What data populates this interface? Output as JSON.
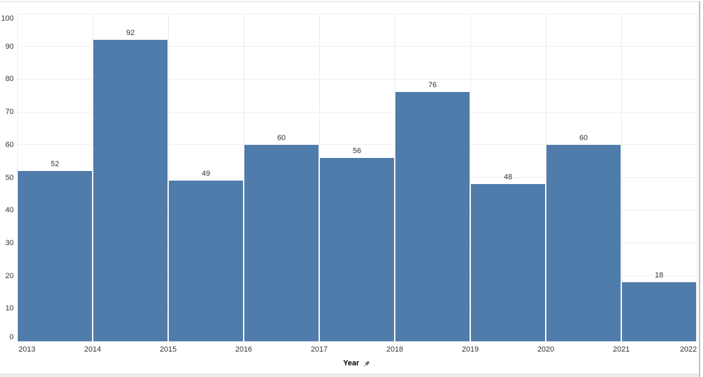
{
  "chart_data": {
    "type": "bar",
    "subtype": "histogram",
    "title": "",
    "xlabel": "Year",
    "ylabel": "",
    "bin_edge_labels": [
      "2013",
      "2014",
      "2015",
      "2016",
      "2017",
      "2018",
      "2019",
      "2020",
      "2021",
      "2022"
    ],
    "values": [
      52,
      92,
      49,
      60,
      56,
      76,
      48,
      60,
      18
    ],
    "bar_value_labels": [
      "52",
      "92",
      "49",
      "60",
      "56",
      "76",
      "48",
      "60",
      "18"
    ],
    "yticks": [
      0,
      10,
      20,
      30,
      40,
      50,
      60,
      70,
      80,
      90,
      100
    ],
    "ytick_labels": [
      "0",
      "10",
      "20",
      "30",
      "40",
      "50",
      "60",
      "70",
      "80",
      "90",
      "100"
    ],
    "ylim": [
      0,
      100
    ],
    "grid": true,
    "legend_position": "none",
    "axis_title_icon": "pin-icon",
    "colors": {
      "bar": "#4f7caa",
      "tick_label": "#333333",
      "value_label": "#333333",
      "axis_title": "#000000",
      "gridline_h": "#f0f0f0",
      "gridline_v": "#ececec",
      "pin_icon": "#5d7186",
      "frame_border": "#bfbfbf",
      "bottom_bar": "#ededed"
    }
  }
}
